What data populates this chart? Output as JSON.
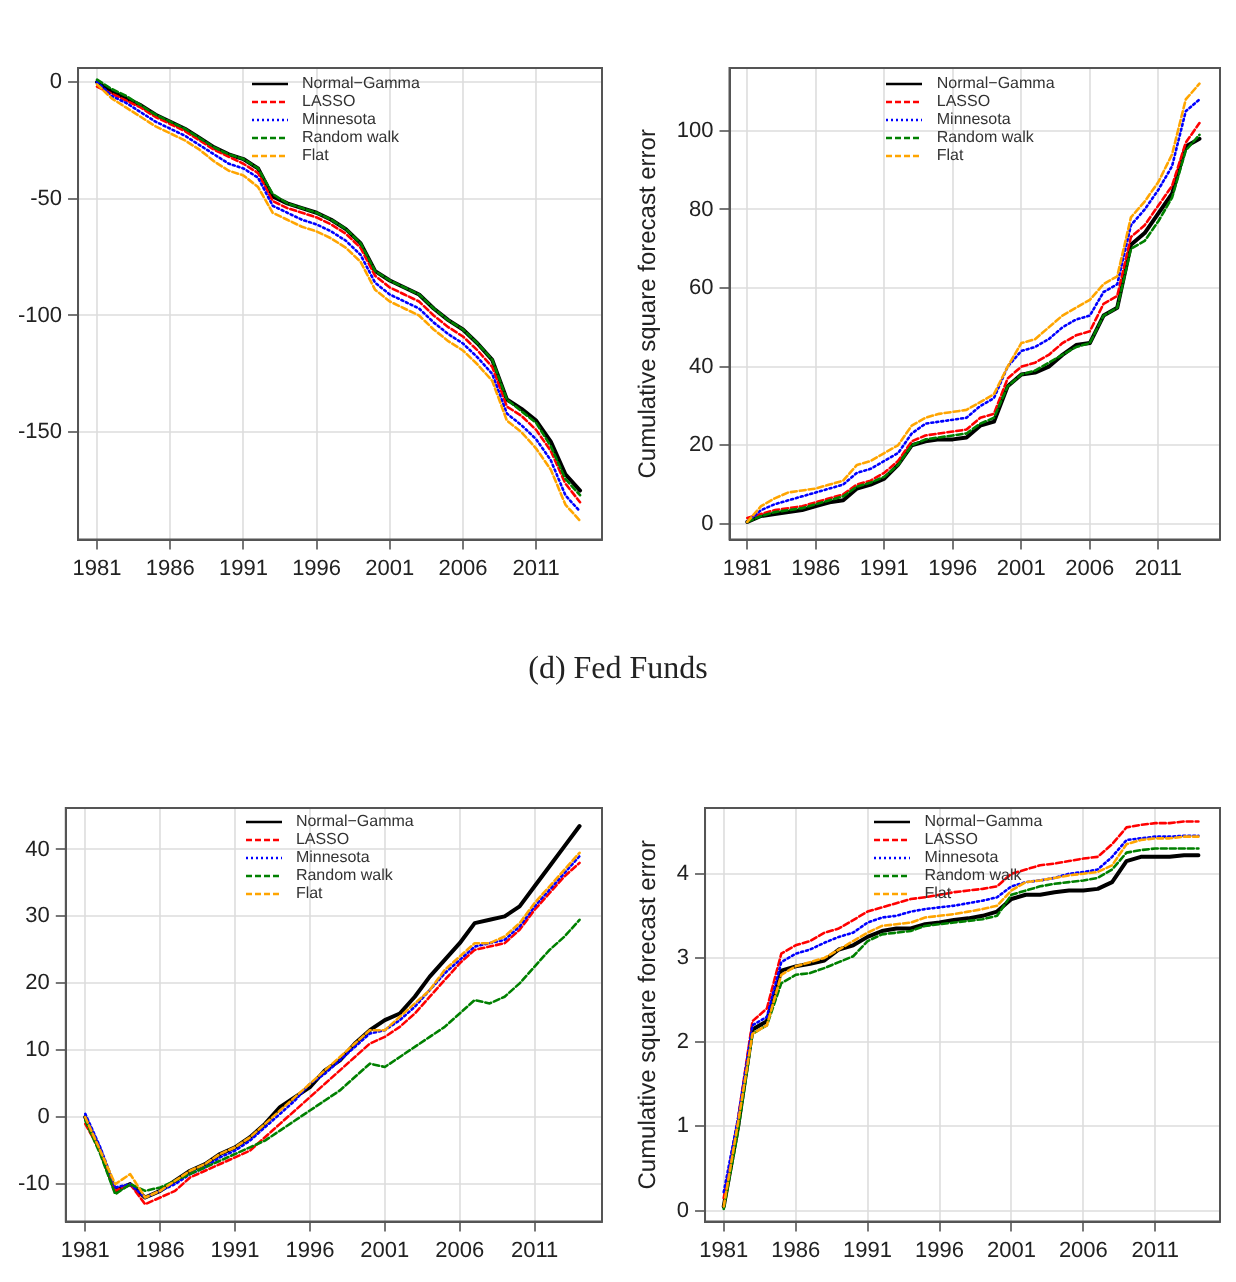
{
  "chart_data": [
    {
      "type": "line",
      "x": [
        1981,
        1982,
        1983,
        1984,
        1985,
        1986,
        1987,
        1988,
        1989,
        1990,
        1991,
        1992,
        1993,
        1994,
        1995,
        1996,
        1997,
        1998,
        1999,
        2000,
        2001,
        2002,
        2003,
        2004,
        2005,
        2006,
        2007,
        2008,
        2009,
        2010,
        2011,
        2012,
        2013,
        2014
      ],
      "xlim": [
        1979.7,
        2015.5
      ],
      "xticks": [
        1981,
        1986,
        1991,
        1996,
        2001,
        2006,
        2011
      ],
      "ylim": [
        -196,
        6
      ],
      "yticks": [
        -150,
        -100,
        -50,
        0
      ],
      "grid": true,
      "legend": "top",
      "series": [
        {
          "name": "Normal−Gamma",
          "color": "#000000",
          "line_style": "solid",
          "values": [
            0,
            -4,
            -7,
            -10,
            -14,
            -17,
            -20,
            -24,
            -28,
            -31,
            -33,
            -37,
            -49,
            -52,
            -54,
            -56,
            -59,
            -63,
            -69,
            -81,
            -85,
            -88,
            -91,
            -97,
            -102,
            -106,
            -112,
            -119,
            -136,
            -140,
            -145,
            -154,
            -168,
            -175
          ]
        },
        {
          "name": "LASSO",
          "color": "#ff0000",
          "line_style": "dashed",
          "values": [
            -2,
            -5,
            -8,
            -11,
            -15,
            -18,
            -21,
            -25,
            -29,
            -32,
            -35,
            -39,
            -51,
            -54,
            -56,
            -58,
            -61,
            -65,
            -71,
            -83,
            -88,
            -91,
            -94,
            -100,
            -105,
            -109,
            -115,
            -122,
            -139,
            -143,
            -149,
            -158,
            -172,
            -180
          ]
        },
        {
          "name": "Minnesota",
          "color": "#0000ff",
          "line_style": "dotted",
          "values": [
            0,
            -6,
            -9,
            -13,
            -17,
            -20,
            -23,
            -27,
            -31,
            -35,
            -37,
            -41,
            -53,
            -56,
            -59,
            -61,
            -64,
            -68,
            -74,
            -86,
            -91,
            -94,
            -97,
            -103,
            -108,
            -112,
            -118,
            -125,
            -142,
            -147,
            -153,
            -162,
            -177,
            -184
          ]
        },
        {
          "name": "Random walk",
          "color": "#008000",
          "line_style": "dashed",
          "values": [
            1,
            -3,
            -6,
            -10,
            -14,
            -17,
            -20,
            -24,
            -28,
            -31,
            -33,
            -37,
            -48,
            -52,
            -54,
            -56,
            -59,
            -63,
            -69,
            -81,
            -85,
            -88,
            -91,
            -97,
            -102,
            -106,
            -112,
            -119,
            -136,
            -141,
            -146,
            -156,
            -170,
            -177
          ]
        },
        {
          "name": "Flat",
          "color": "#ffa500",
          "line_style": "dashed",
          "values": [
            -1,
            -7,
            -11,
            -15,
            -19,
            -22,
            -25,
            -29,
            -34,
            -38,
            -40,
            -45,
            -56,
            -59,
            -62,
            -64,
            -67,
            -71,
            -77,
            -89,
            -94,
            -97,
            -100,
            -106,
            -111,
            -115,
            -121,
            -128,
            -145,
            -150,
            -157,
            -166,
            -181,
            -188
          ]
        }
      ]
    },
    {
      "type": "line",
      "ylabel": "Cumulative square forecast error",
      "x": [
        1981,
        1982,
        1983,
        1984,
        1985,
        1986,
        1987,
        1988,
        1989,
        1990,
        1991,
        1992,
        1993,
        1994,
        1995,
        1996,
        1997,
        1998,
        1999,
        2000,
        2001,
        2002,
        2003,
        2004,
        2005,
        2006,
        2007,
        2008,
        2009,
        2010,
        2011,
        2012,
        2013,
        2014
      ],
      "xlim": [
        1979.7,
        2015.5
      ],
      "xticks": [
        1981,
        1986,
        1991,
        1996,
        2001,
        2006,
        2011
      ],
      "ylim": [
        -4,
        116
      ],
      "yticks": [
        0,
        20,
        40,
        60,
        80,
        100
      ],
      "grid": true,
      "legend": "top",
      "series": [
        {
          "name": "Normal−Gamma",
          "color": "#000000",
          "line_style": "solid",
          "values": [
            0.5,
            2,
            2.5,
            3,
            3.5,
            4.5,
            5.5,
            6,
            9,
            10,
            11.5,
            15,
            20,
            21,
            21.5,
            21.5,
            22,
            25,
            26,
            35,
            38,
            38.5,
            40,
            43,
            45.5,
            46,
            53,
            55,
            71,
            74,
            79,
            84,
            96,
            98
          ]
        },
        {
          "name": "LASSO",
          "color": "#ff0000",
          "line_style": "dashed",
          "values": [
            1.5,
            2.5,
            3.5,
            4,
            4.5,
            5.5,
            6.5,
            7.5,
            10,
            11,
            13,
            16,
            21,
            22.5,
            23,
            23.5,
            24,
            27,
            28,
            37,
            40,
            41,
            43,
            46,
            48,
            49,
            56,
            58,
            73,
            76,
            81,
            86,
            97,
            102
          ]
        },
        {
          "name": "Minnesota",
          "color": "#0000ff",
          "line_style": "dotted",
          "values": [
            0.5,
            3.5,
            5,
            6,
            7,
            8,
            9,
            10,
            13,
            14,
            16,
            18,
            23,
            25.5,
            26,
            26.5,
            27,
            30,
            32,
            40,
            44,
            45,
            47,
            50,
            52,
            53,
            59,
            61,
            76,
            80,
            85,
            91,
            105,
            108
          ]
        },
        {
          "name": "Random walk",
          "color": "#008000",
          "line_style": "dashed",
          "values": [
            0.5,
            2,
            3,
            3.5,
            4,
            5,
            6,
            7,
            9.5,
            10.5,
            12,
            15,
            20,
            21.5,
            22,
            22.5,
            23,
            25.5,
            27,
            35,
            38,
            39,
            41,
            43,
            45,
            46,
            53,
            55,
            70,
            72,
            77,
            83,
            95,
            99
          ]
        },
        {
          "name": "Flat",
          "color": "#ffa500",
          "line_style": "dashed",
          "values": [
            0.5,
            4.5,
            6.5,
            8,
            8.5,
            9,
            10,
            11,
            15,
            16,
            18,
            20,
            25,
            27,
            28,
            28.5,
            29,
            31,
            33,
            40,
            46,
            47,
            50,
            53,
            55,
            57,
            61,
            63,
            78,
            82,
            87,
            94,
            108,
            112
          ]
        }
      ]
    },
    {
      "type": "line",
      "title": "(d) Fed Funds",
      "x": [
        1981,
        1982,
        1983,
        1984,
        1985,
        1986,
        1987,
        1988,
        1989,
        1990,
        1991,
        1992,
        1993,
        1994,
        1995,
        1996,
        1997,
        1998,
        1999,
        2000,
        2001,
        2002,
        2003,
        2004,
        2005,
        2006,
        2007,
        2008,
        2009,
        2010,
        2011,
        2012,
        2013,
        2014
      ],
      "xlim": [
        1979.7,
        2015.5
      ],
      "xticks": [
        1981,
        1986,
        1991,
        1996,
        2001,
        2006,
        2011
      ],
      "ylim": [
        -15.6,
        46.2
      ],
      "yticks": [
        -10,
        0,
        10,
        20,
        30,
        40
      ],
      "grid": true,
      "legend": "top",
      "series": [
        {
          "name": "Normal−Gamma",
          "color": "#000000",
          "line_style": "solid",
          "values": [
            0,
            -5,
            -11,
            -10,
            -12,
            -11,
            -9.5,
            -8,
            -7,
            -5.5,
            -4.5,
            -3,
            -1,
            1.5,
            3,
            4.5,
            7,
            8.5,
            11,
            13,
            14.5,
            15.5,
            18,
            21,
            23.5,
            26,
            29,
            29.5,
            30,
            31.5,
            34.5,
            37.5,
            40.5,
            43.5
          ]
        },
        {
          "name": "LASSO",
          "color": "#ff0000",
          "line_style": "dashed",
          "values": [
            -1,
            -5,
            -11,
            -10,
            -13,
            -12,
            -11,
            -9,
            -8,
            -7,
            -6,
            -5,
            -3,
            -1,
            1,
            3,
            5,
            7,
            9,
            11,
            12,
            13.5,
            15.5,
            18,
            20.5,
            23,
            25,
            25.5,
            26,
            28,
            31,
            33.5,
            36,
            38
          ]
        },
        {
          "name": "Minnesota",
          "color": "#0000ff",
          "line_style": "dotted",
          "values": [
            0.5,
            -4.5,
            -10.5,
            -10,
            -12,
            -11,
            -10,
            -8.5,
            -7.5,
            -6,
            -5,
            -3.5,
            -1.5,
            0.5,
            2.5,
            5,
            6.5,
            8.5,
            10.5,
            12.5,
            13,
            14.5,
            16.5,
            19,
            21.5,
            23.5,
            25.5,
            26,
            26.5,
            28.5,
            31.5,
            34,
            36.5,
            39
          ]
        },
        {
          "name": "Random walk",
          "color": "#008000",
          "line_style": "dashed",
          "values": [
            -0.5,
            -5.5,
            -11.5,
            -10,
            -11,
            -10.5,
            -9.5,
            -8.5,
            -7.5,
            -6.5,
            -5.5,
            -4.5,
            -3.5,
            -2,
            -0.5,
            1,
            2.5,
            4,
            6,
            8,
            7.5,
            9,
            10.5,
            12,
            13.5,
            15.5,
            17.5,
            17,
            18,
            20,
            22.5,
            25,
            27,
            29.5
          ]
        },
        {
          "name": "Flat",
          "color": "#ffa500",
          "line_style": "dashed",
          "values": [
            0,
            -5,
            -10,
            -8.5,
            -12,
            -11,
            -9.5,
            -8,
            -7,
            -5.5,
            -4.5,
            -3,
            -1,
            1,
            3,
            5,
            7,
            9,
            11,
            13,
            13,
            15,
            17,
            19,
            22,
            24,
            26,
            26,
            27,
            29,
            32,
            34.5,
            37,
            39.5
          ]
        }
      ]
    },
    {
      "type": "line",
      "ylabel": "Cumulative square forecast error",
      "x": [
        1981,
        1982,
        1983,
        1984,
        1985,
        1986,
        1987,
        1988,
        1989,
        1990,
        1991,
        1992,
        1993,
        1994,
        1995,
        1996,
        1997,
        1998,
        1999,
        2000,
        2001,
        2002,
        2003,
        2004,
        2005,
        2006,
        2007,
        2008,
        2009,
        2010,
        2011,
        2012,
        2013,
        2014
      ],
      "xlim": [
        1979.7,
        2015.5
      ],
      "xticks": [
        1981,
        1986,
        1991,
        1996,
        2001,
        2006,
        2011
      ],
      "ylim": [
        -0.13,
        4.78
      ],
      "yticks": [
        0,
        1,
        2,
        3,
        4
      ],
      "grid": true,
      "legend": "top",
      "series": [
        {
          "name": "Normal−Gamma",
          "color": "#000000",
          "line_style": "solid",
          "values": [
            0.05,
            1.0,
            2.15,
            2.25,
            2.85,
            2.9,
            2.93,
            2.97,
            3.1,
            3.15,
            3.25,
            3.32,
            3.35,
            3.35,
            3.4,
            3.42,
            3.45,
            3.47,
            3.5,
            3.55,
            3.7,
            3.75,
            3.75,
            3.78,
            3.8,
            3.8,
            3.82,
            3.9,
            4.15,
            4.2,
            4.2,
            4.2,
            4.22,
            4.22
          ]
        },
        {
          "name": "LASSO",
          "color": "#ff0000",
          "line_style": "dashed",
          "values": [
            0.15,
            1.1,
            2.25,
            2.4,
            3.05,
            3.15,
            3.2,
            3.3,
            3.35,
            3.45,
            3.55,
            3.6,
            3.65,
            3.7,
            3.72,
            3.75,
            3.78,
            3.8,
            3.82,
            3.85,
            4.0,
            4.05,
            4.1,
            4.12,
            4.15,
            4.18,
            4.2,
            4.35,
            4.55,
            4.58,
            4.6,
            4.6,
            4.62,
            4.62
          ]
        },
        {
          "name": "Minnesota",
          "color": "#0000ff",
          "line_style": "dotted",
          "values": [
            0.22,
            1.1,
            2.2,
            2.3,
            2.95,
            3.05,
            3.1,
            3.18,
            3.25,
            3.3,
            3.42,
            3.48,
            3.5,
            3.55,
            3.58,
            3.6,
            3.62,
            3.65,
            3.68,
            3.72,
            3.85,
            3.9,
            3.92,
            3.95,
            4.0,
            4.02,
            4.05,
            4.2,
            4.4,
            4.42,
            4.44,
            4.44,
            4.45,
            4.45
          ]
        },
        {
          "name": "Random walk",
          "color": "#008000",
          "line_style": "dashed",
          "values": [
            0.02,
            0.95,
            2.1,
            2.2,
            2.7,
            2.8,
            2.82,
            2.88,
            2.95,
            3.02,
            3.2,
            3.28,
            3.3,
            3.32,
            3.38,
            3.4,
            3.42,
            3.44,
            3.46,
            3.5,
            3.75,
            3.8,
            3.85,
            3.88,
            3.9,
            3.92,
            3.95,
            4.05,
            4.25,
            4.28,
            4.3,
            4.3,
            4.3,
            4.3
          ]
        },
        {
          "name": "Flat",
          "color": "#ffa500",
          "line_style": "dashed",
          "values": [
            0.05,
            1.05,
            2.1,
            2.2,
            2.8,
            2.9,
            2.95,
            3.0,
            3.1,
            3.2,
            3.3,
            3.38,
            3.4,
            3.42,
            3.48,
            3.5,
            3.52,
            3.55,
            3.58,
            3.62,
            3.8,
            3.9,
            3.92,
            3.95,
            3.98,
            4.0,
            4.02,
            4.1,
            4.35,
            4.4,
            4.42,
            4.42,
            4.44,
            4.44
          ]
        }
      ]
    }
  ]
}
